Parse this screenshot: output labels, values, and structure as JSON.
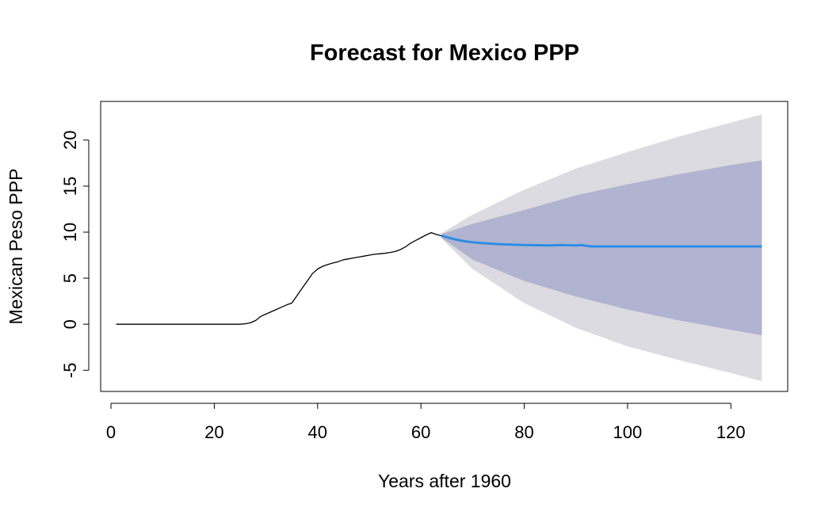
{
  "chart_data": {
    "type": "line",
    "title": "Forecast for Mexico PPP",
    "xlabel": "Years after 1960",
    "ylabel": "Mexican Peso PPP",
    "xlim": [
      -2,
      131
    ],
    "ylim": [
      -7.3,
      24.2
    ],
    "xticks": [
      0,
      20,
      40,
      60,
      80,
      100,
      120
    ],
    "yticks": [
      -5,
      0,
      5,
      10,
      15,
      20
    ],
    "grid": false,
    "legend": "none",
    "colors": {
      "historical": "#000000",
      "forecast": "#2f8de4",
      "band80": "#b1b4d0",
      "band95": "#dbdbe1"
    },
    "series": [
      {
        "x": [
          1,
          5,
          10,
          15,
          20,
          25,
          26,
          27,
          28,
          29,
          30,
          31,
          32,
          33,
          34,
          35,
          36,
          37,
          38,
          39,
          40,
          41,
          42,
          43,
          44,
          45,
          46,
          47,
          48,
          49,
          50,
          51,
          52,
          53,
          54,
          55,
          56,
          57,
          58,
          59,
          60,
          61,
          62,
          63,
          64
        ],
        "y": [
          0,
          0,
          0,
          0,
          0,
          0,
          0.05,
          0.15,
          0.4,
          0.85,
          1.1,
          1.35,
          1.6,
          1.85,
          2.1,
          2.3,
          3.1,
          3.9,
          4.7,
          5.5,
          6.0,
          6.3,
          6.5,
          6.65,
          6.8,
          7.0,
          7.1,
          7.2,
          7.3,
          7.4,
          7.5,
          7.6,
          7.65,
          7.7,
          7.8,
          7.9,
          8.1,
          8.4,
          8.8,
          9.1,
          9.4,
          9.7,
          9.95,
          9.75,
          9.6
        ]
      },
      {
        "x": [
          64,
          66,
          68,
          70,
          72,
          75,
          80,
          85,
          87,
          90,
          91,
          93,
          100,
          110,
          120,
          126
        ],
        "y": [
          9.6,
          9.3,
          9.05,
          8.9,
          8.8,
          8.7,
          8.6,
          8.55,
          8.6,
          8.55,
          8.6,
          8.45,
          8.45,
          8.45,
          8.45,
          8.45
        ]
      }
    ],
    "bands": [
      {
        "level": "95",
        "x": [
          64,
          70,
          80,
          90,
          100,
          110,
          120,
          126
        ],
        "lower": [
          9.3,
          6.0,
          2.3,
          -0.4,
          -2.4,
          -3.9,
          -5.3,
          -6.2
        ],
        "upper": [
          9.9,
          11.9,
          14.6,
          16.9,
          18.7,
          20.4,
          21.9,
          22.8
        ]
      },
      {
        "level": "80",
        "x": [
          64,
          70,
          80,
          90,
          100,
          110,
          120,
          126
        ],
        "lower": [
          9.4,
          7.0,
          4.7,
          3.0,
          1.6,
          0.4,
          -0.6,
          -1.2
        ],
        "upper": [
          9.8,
          10.9,
          12.4,
          14.0,
          15.2,
          16.3,
          17.3,
          17.8
        ]
      }
    ]
  }
}
